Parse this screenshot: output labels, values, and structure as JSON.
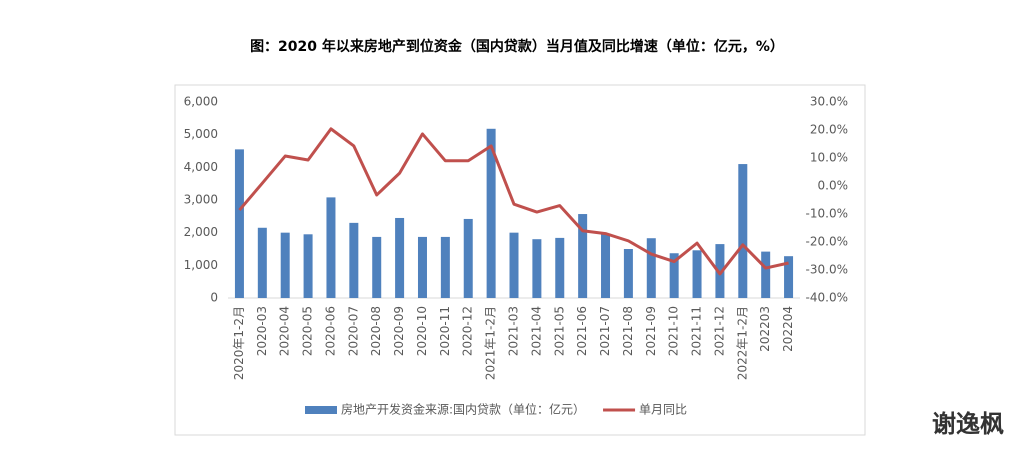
{
  "chart_data": {
    "type": "bar-line",
    "title": "图：2020 年以来房地产到位资金（国内贷款）当月值及同比增速（单位：亿元，%）",
    "categories": [
      "2020年1-2月",
      "2020-03",
      "2020-04",
      "2020-05",
      "2020-06",
      "2020-07",
      "2020-08",
      "2020-09",
      "2020-10",
      "2020-11",
      "2020-12",
      "2021年1-2月",
      "2021-03",
      "2021-04",
      "2021-05",
      "2021-06",
      "2021-07",
      "2021-08",
      "2021-09",
      "2021-10",
      "2021-11",
      "2021-12",
      "2022年1-2月",
      "202203",
      "202204"
    ],
    "series": [
      {
        "name": "房地产开发资金来源:国内贷款（单位：亿元）",
        "type": "bar",
        "color": "#4f81bd",
        "values": [
          4550,
          2150,
          2000,
          1950,
          3080,
          2300,
          1870,
          2450,
          1870,
          1870,
          2420,
          5180,
          2000,
          1800,
          1840,
          2570,
          1950,
          1500,
          1830,
          1370,
          1460,
          1650,
          4100,
          1420,
          1280
        ]
      },
      {
        "name": "单月同比",
        "type": "line",
        "axis": "y2",
        "color": "#c0504d",
        "values": [
          -8.6,
          1,
          10.7,
          9.3,
          20.4,
          14.3,
          -3.2,
          4.6,
          18.6,
          9,
          9,
          14.3,
          -6.5,
          -9.3,
          -7,
          -16,
          -17,
          -19.6,
          -24.3,
          -27,
          -20.4,
          -31.4,
          -21,
          -29.3,
          -27.5
        ]
      }
    ],
    "ylim": [
      0,
      6000
    ],
    "yticks": [
      0,
      {
        "value": 1000,
        "label": "1,000"
      },
      {
        "value": 2000,
        "label": "2,000"
      },
      {
        "value": 3000,
        "label": "3,000"
      },
      {
        "value": 4000,
        "label": "4,000"
      },
      {
        "value": 5000,
        "label": "5,000"
      },
      {
        "value": 6000,
        "label": "6,000"
      }
    ],
    "y2lim": [
      -40,
      30
    ],
    "y2ticks": [
      {
        "value": -40,
        "label": "-40.0%"
      },
      {
        "value": -30,
        "label": "-30.0%"
      },
      {
        "value": -20,
        "label": "-20.0%"
      },
      {
        "value": -10,
        "label": "-10.0%"
      },
      {
        "value": 0,
        "label": "0.0%"
      },
      {
        "value": 10,
        "label": "10.0%"
      },
      {
        "value": 20,
        "label": "20.0%"
      },
      {
        "value": 30,
        "label": "30.0%"
      }
    ],
    "grid": false,
    "legend": "bottom",
    "watermark": "谢逸枫"
  }
}
